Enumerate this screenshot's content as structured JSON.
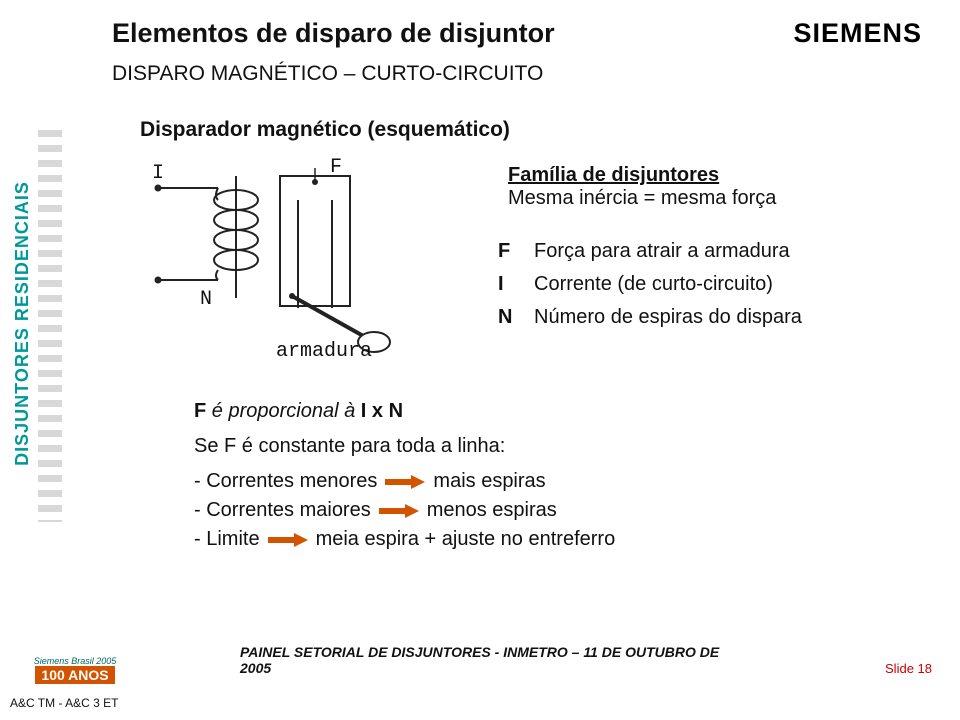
{
  "header": {
    "title": "Elementos de disparo de disjuntor",
    "subtitle": "DISPARO MAGNÉTICO – CURTO-CIRCUITO",
    "logo": "SIEMENS"
  },
  "sidebar": {
    "label": "DISJUNTORES RESIDENCIAIS",
    "text_color": "#009999"
  },
  "section_heading": "Disparador magnético (esquemático)",
  "diagram": {
    "labels": {
      "I": "I",
      "F": "F",
      "N": "N",
      "armadura": "armadura"
    },
    "stroke": "#222222"
  },
  "callout": {
    "title": "Família de disjuntores",
    "line": "Mesma inércia = mesma força"
  },
  "definitions": [
    {
      "letter": "F",
      "text": "Força para atrair a armadura"
    },
    {
      "letter": "I",
      "text": "Corrente (de curto-circuito)"
    },
    {
      "letter": "N",
      "text": "Número de espiras do dispara"
    }
  ],
  "bottom_box": {
    "line1_prefix": "F ",
    "line1_italic": "é proporcional à",
    "line1_suffix": " I x N",
    "line2": "Se F é constante para toda a linha:",
    "rows": [
      {
        "left": "- Correntes menores",
        "arrow_color": "#d35400",
        "right": "mais espiras"
      },
      {
        "left": "- Correntes maiores",
        "arrow_color": "#d35400",
        "right": "menos espiras"
      },
      {
        "left": "- Limite",
        "arrow_color": "#d35400",
        "right": "meia espira + ajuste no entreferro"
      }
    ]
  },
  "footer": {
    "logo_top": "Siemens Brasil 2005",
    "logo_bottom": "100 ANOS",
    "center": "PAINEL SETORIAL DE DISJUNTORES - INMETRO – 11 DE OUTUBRO DE 2005",
    "slide": "Slide 18",
    "bottom_left": "A&C TM - A&C 3 ET"
  },
  "colors": {
    "callout_shadow": "#c7c7c7",
    "arrow_fill": "#d35400",
    "slide_num": "#c00000"
  }
}
